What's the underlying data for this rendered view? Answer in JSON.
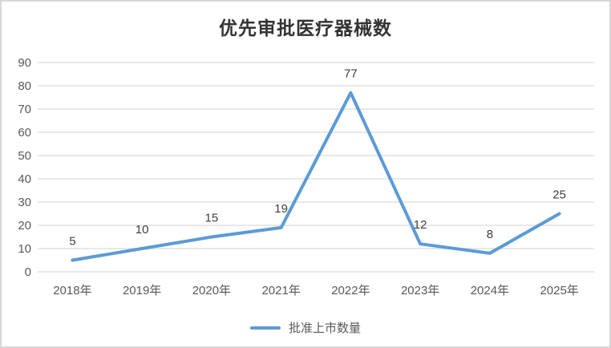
{
  "title": "优先审批医疗器械数",
  "legend": {
    "label": "批准上市数量"
  },
  "colors": {
    "line": "#5b9bd5",
    "grid": "#e0e0e0",
    "tick_label": "#595959",
    "axis_label": "#595959",
    "data_label": "#404040",
    "title": "#333333",
    "border": "#d6d6d6",
    "background": "#ffffff"
  },
  "chart_data": {
    "type": "line",
    "title": "优先审批医疗器械数",
    "categories": [
      "2018年",
      "2019年",
      "2020年",
      "2021年",
      "2022年",
      "2023年",
      "2024年",
      "2025年"
    ],
    "series": [
      {
        "name": "批准上市数量",
        "values": [
          5,
          10,
          15,
          19,
          77,
          12,
          8,
          25
        ]
      }
    ],
    "xlabel": "",
    "ylabel": "",
    "ylim": [
      0,
      90
    ],
    "yticks": [
      0,
      10,
      20,
      30,
      40,
      50,
      60,
      70,
      80,
      90
    ],
    "grid": true,
    "markers": false,
    "data_labels": true,
    "legend_position": "bottom"
  }
}
